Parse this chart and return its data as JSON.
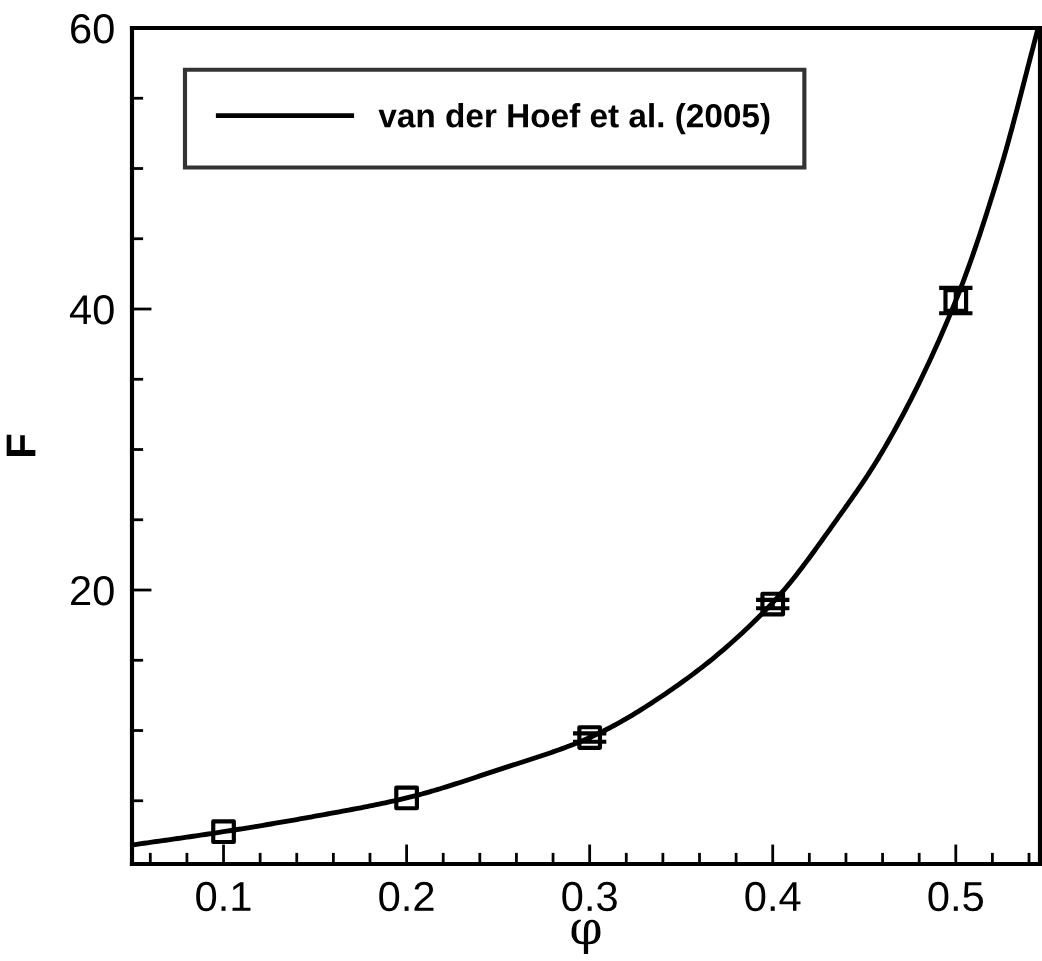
{
  "chart_data": {
    "type": "line",
    "xlabel": "φ",
    "ylabel": "F",
    "xlim": [
      0.05,
      0.546
    ],
    "ylim": [
      0.5,
      60
    ],
    "xticks": [
      {
        "value": 0.06,
        "label": null
      },
      {
        "value": 0.08,
        "label": null
      },
      0.1,
      {
        "value": 0.12,
        "label": null
      },
      {
        "value": 0.14,
        "label": null
      },
      {
        "value": 0.16,
        "label": null
      },
      {
        "value": 0.18,
        "label": null
      },
      0.2,
      {
        "value": 0.22,
        "label": null
      },
      {
        "value": 0.24,
        "label": null
      },
      {
        "value": 0.26,
        "label": null
      },
      {
        "value": 0.28,
        "label": null
      },
      0.3,
      {
        "value": 0.32,
        "label": null
      },
      {
        "value": 0.34,
        "label": null
      },
      {
        "value": 0.36,
        "label": null
      },
      {
        "value": 0.38,
        "label": null
      },
      0.4,
      {
        "value": 0.42,
        "label": null
      },
      {
        "value": 0.44,
        "label": null
      },
      {
        "value": 0.46,
        "label": null
      },
      {
        "value": 0.48,
        "label": null
      },
      0.5,
      {
        "value": 0.52,
        "label": null
      },
      {
        "value": 0.54,
        "label": null
      }
    ],
    "yticks": [
      {
        "value": 5,
        "label": null
      },
      {
        "value": 10,
        "label": null
      },
      {
        "value": 15,
        "label": null
      },
      20,
      {
        "value": 25,
        "label": null
      },
      {
        "value": 30,
        "label": null
      },
      {
        "value": 35,
        "label": null
      },
      40,
      {
        "value": 45,
        "label": null
      },
      {
        "value": 50,
        "label": null
      },
      {
        "value": 55,
        "label": null
      },
      60
    ],
    "grid": false,
    "legend": "top left",
    "series": [
      {
        "type": "scatter",
        "marker": "square",
        "color": "#000000",
        "x": [
          0.1,
          0.2,
          0.3,
          0.4,
          0.5
        ],
        "values": [
          2.8,
          5.2,
          9.5,
          19.0,
          40.6
        ],
        "errors": [
          null,
          null,
          0.3,
          0.3,
          0.9
        ]
      },
      {
        "name": "van der Hoef et al. (2005)",
        "color": "#000000",
        "line_style": "solid",
        "marker": "none",
        "x": [
          0.05,
          0.1,
          0.15,
          0.2,
          0.25,
          0.3,
          0.35,
          0.4,
          0.436,
          0.461,
          0.5,
          0.524,
          0.545
        ],
        "values": [
          1.85,
          2.8,
          3.9,
          5.2,
          7.2,
          9.5,
          13.4,
          19.1,
          25.2,
          30.1,
          40.6,
          49.8,
          60
        ]
      }
    ]
  }
}
